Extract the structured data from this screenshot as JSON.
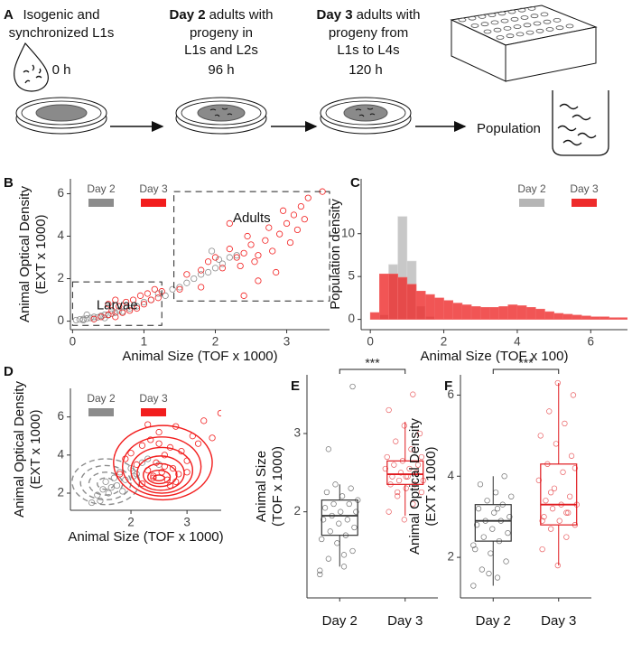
{
  "panel_a": {
    "label": "A",
    "steps": [
      {
        "lines": [
          "Isogenic and",
          "synchronized L1s"
        ],
        "time": "0 h"
      },
      {
        "bold": "Day 2",
        "lines": [
          "adults with",
          "progeny in",
          "L1s and L2s"
        ],
        "time": "96 h"
      },
      {
        "bold": "Day 3",
        "lines": [
          "adults with",
          "progeny from",
          "L1s to L4s"
        ],
        "time": "120 h"
      }
    ],
    "result": "Population"
  },
  "chart_data": [
    {
      "type": "scatter",
      "panel_label": "B",
      "x_label": "Animal Size (TOF x 1000)",
      "y_label": [
        "Animal Optical Density",
        "(EXT x 1000)"
      ],
      "xlim": [
        -0.03,
        3.6
      ],
      "ylim": [
        -0.4,
        6.7
      ],
      "xticks": [
        0,
        1,
        2,
        3
      ],
      "yticks": [
        0,
        2,
        4,
        6
      ],
      "legend": "top-left",
      "regions": [
        {
          "label": "Adults",
          "x": [
            1.42,
            3.6
          ],
          "y": [
            0.95,
            6.1
          ]
        },
        {
          "label": "Larvae",
          "x": [
            0,
            1.25
          ],
          "y": [
            -0.2,
            1.85
          ]
        }
      ],
      "series": [
        {
          "name": "Day 2",
          "color": "#8c8c8c",
          "x": [
            0.05,
            0.1,
            0.15,
            0.2,
            0.25,
            0.3,
            0.35,
            0.4,
            0.45,
            0.5,
            0.55,
            0.6,
            0.65,
            0.7,
            0.8,
            0.9,
            1.0,
            1.1,
            1.2,
            1.3,
            1.4,
            1.5,
            1.6,
            1.7,
            1.8,
            1.9,
            2.0,
            2.05,
            2.1,
            2.2,
            2.3,
            1.95,
            0.15,
            0.3,
            0.45,
            0.2
          ],
          "y": [
            0.05,
            0.08,
            0.1,
            0.12,
            0.15,
            0.2,
            0.18,
            0.25,
            0.3,
            0.28,
            0.35,
            0.4,
            0.5,
            0.45,
            0.6,
            0.7,
            0.9,
            1.0,
            1.3,
            1.2,
            1.5,
            1.6,
            1.8,
            2.0,
            2.2,
            2.3,
            2.5,
            2.9,
            2.7,
            3.0,
            3.1,
            3.3,
            0.05,
            0.1,
            0.15,
            0.3
          ]
        },
        {
          "name": "Day 3",
          "color": "#f21d1d",
          "x": [
            0.3,
            0.4,
            0.5,
            0.55,
            0.6,
            0.65,
            0.7,
            0.75,
            0.8,
            0.85,
            0.9,
            0.95,
            1.0,
            1.05,
            1.1,
            1.15,
            1.2,
            1.25,
            0.5,
            0.6,
            1.5,
            1.6,
            1.8,
            1.9,
            2.0,
            2.1,
            2.2,
            2.3,
            2.35,
            2.4,
            2.45,
            2.5,
            2.55,
            2.6,
            2.7,
            2.75,
            2.8,
            2.9,
            3.0,
            3.05,
            3.1,
            3.15,
            3.2,
            3.25,
            3.3,
            2.85,
            2.4,
            2.6,
            2.2,
            3.5,
            1.8,
            2.95
          ],
          "y": [
            0.1,
            0.2,
            0.3,
            0.5,
            0.2,
            0.7,
            0.4,
            0.9,
            0.5,
            1.0,
            0.6,
            1.2,
            0.8,
            1.3,
            1.0,
            1.5,
            1.1,
            1.4,
            0.8,
            1.0,
            1.5,
            2.2,
            2.4,
            2.8,
            3.0,
            2.5,
            3.4,
            3.0,
            2.6,
            3.2,
            4.0,
            3.6,
            2.8,
            3.1,
            3.8,
            4.4,
            3.3,
            4.1,
            4.6,
            3.7,
            5.0,
            4.3,
            5.4,
            4.8,
            5.8,
            2.3,
            1.2,
            1.9,
            4.6,
            6.1,
            1.6,
            5.2
          ]
        }
      ]
    },
    {
      "type": "histogram",
      "panel_label": "C",
      "x_label": "Animal Size (TOF x 100)",
      "y_label": "Population density",
      "xlim": [
        -0.25,
        7
      ],
      "ylim": [
        -1.2,
        16.4
      ],
      "xticks": [
        0,
        2,
        4,
        6
      ],
      "yticks": [
        0,
        5,
        10
      ],
      "legend": "top-right",
      "bins": [
        0,
        0.25,
        0.5,
        0.75,
        1,
        1.25,
        1.5,
        1.75,
        2,
        2.25,
        2.5,
        2.75,
        3,
        3.25,
        3.5,
        3.75,
        4,
        4.25,
        4.5,
        4.75,
        5,
        5.25,
        5.5,
        5.75,
        6,
        6.25,
        6.5,
        6.75,
        7
      ],
      "series": [
        {
          "name": "Day 2",
          "color": "#b5b5b5",
          "values": [
            0,
            0.5,
            6.4,
            12,
            6.8,
            1.5,
            0.3,
            0,
            0,
            0,
            0,
            0,
            0,
            0,
            0,
            0,
            0,
            0,
            0,
            0,
            0,
            0,
            0,
            0,
            0,
            0,
            0,
            0
          ]
        },
        {
          "name": "Day 3",
          "color": "#ee2b2b",
          "values": [
            0.8,
            5.3,
            5.3,
            4.9,
            4.1,
            3.3,
            2.9,
            2.5,
            2.2,
            1.9,
            1.7,
            1.5,
            1.4,
            1.4,
            1.5,
            1.7,
            1.6,
            1.4,
            1.2,
            0.9,
            0.7,
            0.6,
            0.5,
            0.4,
            0.3,
            0.3,
            0.2,
            0.2
          ]
        }
      ]
    },
    {
      "type": "scatter",
      "panel_label": "D",
      "x_label": "Animal Size (TOF x 1000)",
      "y_label": [
        "Animal Optical Density",
        "(EXT x 1000)"
      ],
      "xlim": [
        0.92,
        3.61
      ],
      "ylim": [
        1.1,
        7.5
      ],
      "xticks": [
        2,
        3
      ],
      "yticks": [
        2,
        4,
        6
      ],
      "legend": "top-left",
      "series": [
        {
          "name": "Day 2",
          "color": "#8c8c8c",
          "line_style": "dashed",
          "x": [
            1.3,
            1.4,
            1.5,
            1.55,
            1.6,
            1.7,
            1.75,
            1.8,
            1.9,
            2.0,
            2.1,
            2.2,
            1.45,
            1.65,
            2.3,
            2.5,
            1.85,
            2.05
          ],
          "y": [
            1.5,
            1.9,
            2.2,
            2.6,
            2.0,
            2.8,
            2.4,
            3.1,
            2.7,
            3.3,
            3.0,
            3.6,
            1.6,
            2.3,
            3.8,
            3.5,
            2.1,
            2.9
          ],
          "contours": [
            {
              "cx": 1.55,
              "cy": 2.5,
              "rx": 0.15,
              "ry": 0.3
            },
            {
              "cx": 1.55,
              "cy": 2.5,
              "rx": 0.3,
              "ry": 0.6
            },
            {
              "cx": 1.55,
              "cy": 2.55,
              "rx": 0.45,
              "ry": 0.9
            },
            {
              "cx": 1.55,
              "cy": 2.6,
              "rx": 0.6,
              "ry": 1.2
            }
          ]
        },
        {
          "name": "Day 3",
          "color": "#f21d1d",
          "line_style": "solid",
          "x": [
            1.8,
            1.9,
            2.0,
            2.1,
            2.2,
            2.3,
            2.35,
            2.4,
            2.45,
            2.5,
            2.55,
            2.6,
            2.65,
            2.7,
            2.75,
            2.8,
            2.85,
            2.9,
            3.0,
            3.1,
            3.2,
            3.3,
            3.45,
            3.6,
            2.2,
            2.4,
            2.6,
            2.8,
            3.0,
            2.5,
            2.7,
            2.3
          ],
          "y": [
            3.0,
            3.8,
            4.1,
            3.5,
            4.5,
            3.2,
            4.8,
            2.9,
            3.6,
            5.2,
            3.1,
            4.0,
            2.7,
            4.4,
            3.3,
            5.5,
            3.0,
            4.2,
            3.7,
            5.0,
            4.6,
            5.8,
            4.9,
            6.2,
            2.5,
            2.8,
            3.4,
            2.6,
            3.1,
            4.6,
            2.4,
            5.6
          ],
          "contours": [
            {
              "cx": 2.5,
              "cy": 2.8,
              "rx": 0.1,
              "ry": 0.15
            },
            {
              "cx": 2.5,
              "cy": 2.85,
              "rx": 0.2,
              "ry": 0.35
            },
            {
              "cx": 2.52,
              "cy": 2.95,
              "rx": 0.3,
              "ry": 0.6
            },
            {
              "cx": 2.53,
              "cy": 3.05,
              "rx": 0.42,
              "ry": 0.9
            },
            {
              "cx": 2.55,
              "cy": 3.2,
              "rx": 0.55,
              "ry": 1.2
            },
            {
              "cx": 2.55,
              "cy": 3.4,
              "rx": 0.7,
              "ry": 1.55
            },
            {
              "cx": 2.57,
              "cy": 3.6,
              "rx": 0.88,
              "ry": 1.95
            }
          ]
        }
      ]
    },
    {
      "type": "box",
      "panel_label": "E",
      "y_label": [
        "Animal Size",
        "(TOF x 1000)"
      ],
      "categories": [
        "Day 2",
        "Day 3"
      ],
      "ylim": [
        0.9,
        3.75
      ],
      "yticks": [
        2,
        3
      ],
      "significance": "***",
      "boxes": [
        {
          "color": "#333333",
          "whisker_low": 1.3,
          "q1": 1.7,
          "median": 1.95,
          "q3": 2.15,
          "whisker_high": 2.35,
          "points": [
            1.2,
            1.3,
            1.4,
            1.5,
            1.6,
            1.65,
            1.7,
            1.75,
            1.8,
            1.85,
            1.9,
            1.9,
            1.95,
            2.0,
            2.0,
            2.05,
            2.1,
            2.1,
            2.15,
            2.2,
            2.25,
            2.3,
            2.35,
            1.25,
            1.45,
            2.8,
            3.6
          ]
        },
        {
          "color": "#e0191e",
          "whisker_low": 1.95,
          "q1": 2.35,
          "median": 2.48,
          "q3": 2.65,
          "whisker_high": 3.15,
          "points": [
            1.9,
            2.0,
            2.1,
            2.2,
            2.25,
            2.3,
            2.35,
            2.35,
            2.4,
            2.4,
            2.45,
            2.45,
            2.5,
            2.5,
            2.55,
            2.55,
            2.6,
            2.6,
            2.65,
            2.7,
            2.8,
            2.9,
            3.0,
            3.1,
            3.3,
            3.5,
            2.25,
            2.7,
            2.45
          ]
        }
      ]
    },
    {
      "type": "box",
      "panel_label": "F",
      "y_label": [
        "Animal Optical Density",
        "(EXT x 1000)"
      ],
      "categories": [
        "Day 2",
        "Day 3"
      ],
      "ylim": [
        1.0,
        6.5
      ],
      "yticks": [
        2,
        4,
        6
      ],
      "significance": "***",
      "boxes": [
        {
          "color": "#333333",
          "whisker_low": 1.3,
          "q1": 2.4,
          "median": 2.9,
          "q3": 3.3,
          "whisker_high": 4.0,
          "points": [
            1.3,
            1.5,
            1.7,
            1.9,
            2.1,
            2.2,
            2.4,
            2.5,
            2.6,
            2.7,
            2.8,
            2.9,
            2.9,
            3.0,
            3.1,
            3.2,
            3.3,
            3.4,
            3.5,
            3.6,
            3.8,
            4.0,
            1.6,
            2.3,
            3.2
          ]
        },
        {
          "color": "#e0191e",
          "whisker_low": 1.8,
          "q1": 2.8,
          "median": 3.3,
          "q3": 4.3,
          "whisker_high": 6.3,
          "points": [
            1.8,
            2.2,
            2.5,
            2.7,
            2.8,
            2.9,
            3.0,
            3.1,
            3.2,
            3.3,
            3.3,
            3.4,
            3.5,
            3.7,
            3.9,
            4.1,
            4.3,
            4.5,
            4.8,
            5.0,
            5.3,
            5.6,
            6.0,
            6.3,
            2.9,
            3.1,
            3.6,
            4.2
          ]
        }
      ]
    }
  ]
}
